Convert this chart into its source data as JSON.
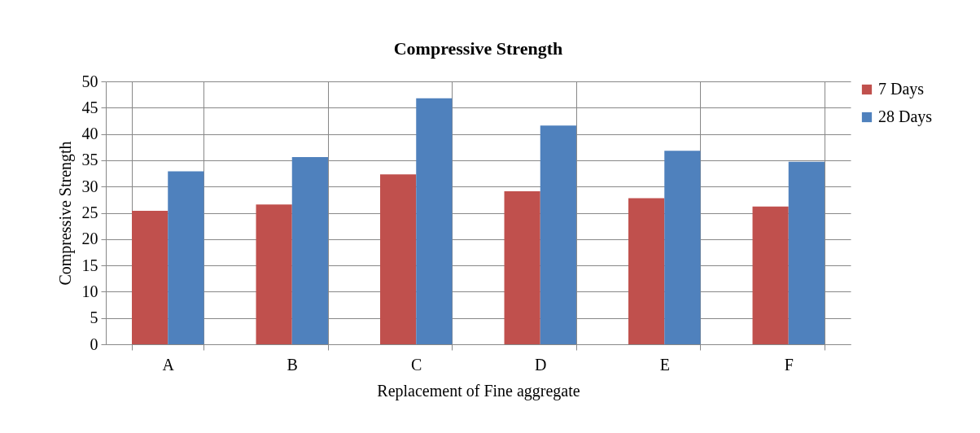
{
  "chart_data": {
    "type": "bar",
    "title": "Compressive Strength",
    "xlabel": "Replacement of Fine aggregate",
    "ylabel": "Compressive Strength",
    "categories": [
      "A",
      "B",
      "C",
      "D",
      "E",
      "F"
    ],
    "series": [
      {
        "name": "7 Days",
        "color": "#c0504d",
        "values": [
          25.4,
          26.6,
          32.3,
          29.1,
          27.8,
          26.2
        ]
      },
      {
        "name": "28 Days",
        "color": "#4f81bd",
        "values": [
          32.9,
          35.6,
          46.8,
          41.6,
          36.8,
          34.7
        ]
      }
    ],
    "ylim": [
      0,
      50
    ],
    "yticks": [
      0,
      5,
      10,
      15,
      20,
      25,
      30,
      35,
      40,
      45,
      50
    ],
    "grid": true,
    "legend": "right"
  }
}
